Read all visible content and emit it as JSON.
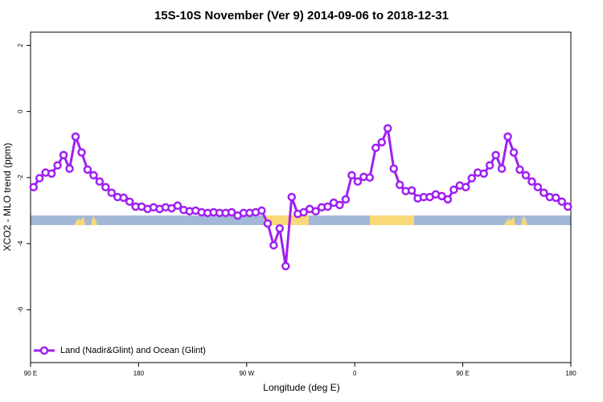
{
  "chart_data": {
    "type": "line",
    "title": "15S-10S November (Ver 9)   2014-09-06 to 2018-12-31",
    "xlabel": "Longitude (deg E)",
    "ylabel": "XCO2 - MLO trend (ppm)",
    "x": [
      92.5,
      97.5,
      102.5,
      107.5,
      112.5,
      117.5,
      122.5,
      127.5,
      132.5,
      137.5,
      142.5,
      147.5,
      152.5,
      157.5,
      162.5,
      167.5,
      172.5,
      177.5,
      182.5,
      187.5,
      192.5,
      197.5,
      202.5,
      207.5,
      212.5,
      217.5,
      222.5,
      227.5,
      232.5,
      237.5,
      242.5,
      247.5,
      252.5,
      257.5,
      262.5,
      267.5,
      272.5,
      277.5,
      282.5,
      287.5,
      292.5,
      297.5,
      302.5,
      307.5,
      312.5,
      317.5,
      322.5,
      327.5,
      332.5,
      337.5,
      342.5,
      347.5,
      352.5,
      357.5,
      362.5,
      367.5,
      372.5,
      377.5,
      382.5,
      387.5,
      392.5,
      397.5,
      402.5,
      407.5,
      412.5,
      417.5,
      422.5,
      427.5,
      432.5,
      437.5,
      442.5,
      447.5,
      452.5,
      457.5,
      462.5,
      467.5,
      472.5,
      477.5,
      482.5,
      487.5,
      492.5,
      497.5,
      502.5,
      507.5,
      512.5,
      517.5,
      522.5,
      527.5,
      532.5,
      537.5
    ],
    "series": [
      {
        "name": "Land (Nadir&Glint) and Ocean (Glint)",
        "color": "#a020f0",
        "values": [
          -2.29,
          -2.02,
          -1.85,
          -1.88,
          -1.63,
          -1.32,
          -1.73,
          -0.76,
          -1.24,
          -1.76,
          -1.93,
          -2.12,
          -2.29,
          -2.46,
          -2.59,
          -2.61,
          -2.73,
          -2.88,
          -2.88,
          -2.95,
          -2.9,
          -2.95,
          -2.9,
          -2.93,
          -2.85,
          -2.98,
          -3.02,
          -3.0,
          -3.05,
          -3.07,
          -3.05,
          -3.07,
          -3.07,
          -3.05,
          -3.15,
          -3.07,
          -3.07,
          -3.05,
          -3.0,
          -3.39,
          -4.05,
          -3.54,
          -4.68,
          -2.59,
          -3.1,
          -3.05,
          -2.95,
          -3.02,
          -2.9,
          -2.88,
          -2.76,
          -2.83,
          -2.66,
          -1.93,
          -2.12,
          -1.98,
          -2.0,
          -1.1,
          -0.93,
          -0.51,
          -1.73,
          -2.22,
          -2.41,
          -2.39,
          -2.63,
          -2.59,
          -2.59,
          -2.51,
          -2.56,
          -2.66,
          -2.37,
          -2.24,
          -2.29,
          -2.02,
          -1.85,
          -1.88,
          -1.63,
          -1.32,
          -1.73,
          -0.76,
          -1.24,
          -1.76,
          -1.93,
          -2.12,
          -2.29,
          -2.46,
          -2.59,
          -2.61,
          -2.73,
          -2.88
        ]
      }
    ],
    "xlim": [
      90,
      540
    ],
    "ylim": [
      -7.6,
      2.4
    ],
    "xticks": [
      {
        "value": 90,
        "label": "90 E"
      },
      180,
      {
        "value": 270,
        "label": "90 W"
      },
      {
        "value": 360,
        "label": "0"
      },
      {
        "value": 450,
        "label": "90 E"
      },
      {
        "value": 540,
        "label": "180"
      }
    ],
    "yticks": [
      -6,
      -4,
      -2,
      0,
      2
    ]
  }
}
